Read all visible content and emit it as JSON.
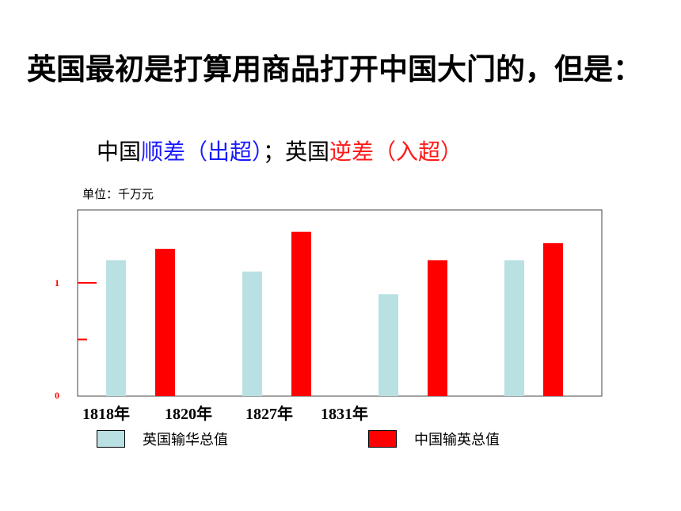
{
  "slide": {
    "title": "英国最初是打算用商品打开中国大门的，但是：",
    "subtitle": {
      "part1": "中国",
      "part2": "顺差（出超）",
      "part3": "；英国",
      "part4": "逆差（入超）"
    },
    "colors": {
      "blue_text": "#1a1aff",
      "red_text": "#ff1a1a"
    }
  },
  "chart_data": {
    "type": "bar",
    "unit_label": "单位：千万元",
    "categories": [
      "1818年",
      "1820年",
      "1827年",
      "1831年"
    ],
    "series": [
      {
        "name": "英国输华总值",
        "color": "#b9e0e3",
        "values": [
          1.2,
          1.1,
          0.9,
          1.2
        ]
      },
      {
        "name": "中国输英总值",
        "color": "#ff0000",
        "values": [
          1.3,
          1.45,
          1.2,
          1.35
        ]
      }
    ],
    "y_ticks": [
      "0",
      "1"
    ],
    "ylim": [
      0,
      2
    ],
    "grid": false,
    "legend_position": "bottom"
  }
}
